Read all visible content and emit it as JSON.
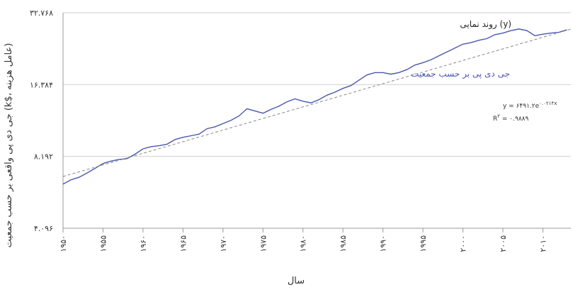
{
  "chart_data": {
    "type": "line",
    "xlabel": "سال",
    "ylabel": "جی دی پی واقعی بر حسب جمعیت (k$، عامل هزینه)",
    "yscale": "log",
    "grid": true,
    "xlim": [
      1950,
      2013.5
    ],
    "ylim": [
      4096,
      32768
    ],
    "yticks": [
      {
        "value": 4096,
        "label": "۴.۰۹۶"
      },
      {
        "value": 8192,
        "label": "۸.۱۹۲"
      },
      {
        "value": 16384,
        "label": "۱۶.۳۸۴"
      },
      {
        "value": 32768,
        "label": "۳۲.۷۶۸"
      }
    ],
    "xticks": [
      {
        "value": 1950,
        "label": "۱۹۵۰"
      },
      {
        "value": 1955,
        "label": "۱۹۵۵"
      },
      {
        "value": 1960,
        "label": "۱۹۶۰"
      },
      {
        "value": 1965,
        "label": "۱۹۶۵"
      },
      {
        "value": 1970,
        "label": "۱۹۷۰"
      },
      {
        "value": 1975,
        "label": "۱۹۷۵"
      },
      {
        "value": 1980,
        "label": "۱۹۸۰"
      },
      {
        "value": 1985,
        "label": "۱۹۸۵"
      },
      {
        "value": 1990,
        "label": "۱۹۹۰"
      },
      {
        "value": 1995,
        "label": "۱۹۹۵"
      },
      {
        "value": 2000,
        "label": "۲۰۰۰"
      },
      {
        "value": 2005,
        "label": "۲۰۰۵"
      },
      {
        "value": 2010,
        "label": "۲۰۱۰"
      }
    ],
    "series": [
      {
        "name": "جی دی پی بر حسب جمعیت",
        "color": "#4a57b0",
        "x": [
          1950,
          1951,
          1952,
          1953,
          1954,
          1955,
          1956,
          1957,
          1958,
          1959,
          1960,
          1961,
          1962,
          1963,
          1964,
          1965,
          1966,
          1967,
          1968,
          1969,
          1970,
          1971,
          1972,
          1973,
          1974,
          1975,
          1976,
          1977,
          1978,
          1979,
          1980,
          1981,
          1982,
          1983,
          1984,
          1985,
          1986,
          1987,
          1988,
          1989,
          1990,
          1991,
          1992,
          1993,
          1994,
          1995,
          1996,
          1997,
          1998,
          1999,
          2000,
          2001,
          2002,
          2003,
          2004,
          2005,
          2006,
          2007,
          2008,
          2009,
          2010,
          2011,
          2012,
          2013
        ],
        "values": [
          6270,
          6540,
          6700,
          6980,
          7300,
          7650,
          7830,
          7960,
          8020,
          8370,
          8810,
          9000,
          9080,
          9220,
          9640,
          9850,
          10000,
          10160,
          10700,
          10900,
          11240,
          11600,
          12100,
          12980,
          12700,
          12430,
          12890,
          13300,
          13880,
          14270,
          13950,
          13740,
          14170,
          14790,
          15230,
          15790,
          16230,
          17100,
          17990,
          18400,
          18400,
          18120,
          18400,
          18930,
          19780,
          20240,
          20810,
          21620,
          22450,
          23310,
          24200,
          24560,
          25130,
          25530,
          26520,
          26930,
          27580,
          28020,
          27580,
          26260,
          26660,
          26930,
          27130,
          27790
        ]
      },
      {
        "name": "روند نمایی (y)",
        "color": "#888888",
        "dash": true,
        "x": [
          1950,
          2013.5
        ],
        "values": [
          6750,
          27970
        ]
      }
    ],
    "annotations": [
      {
        "text": "y = ۶۴۹۱.۲e",
        "sup": "۰.۰۲۱۴x"
      },
      {
        "text": "R",
        "sup": "۲",
        "tail": " = ۰.۹۸۸۹"
      }
    ]
  }
}
